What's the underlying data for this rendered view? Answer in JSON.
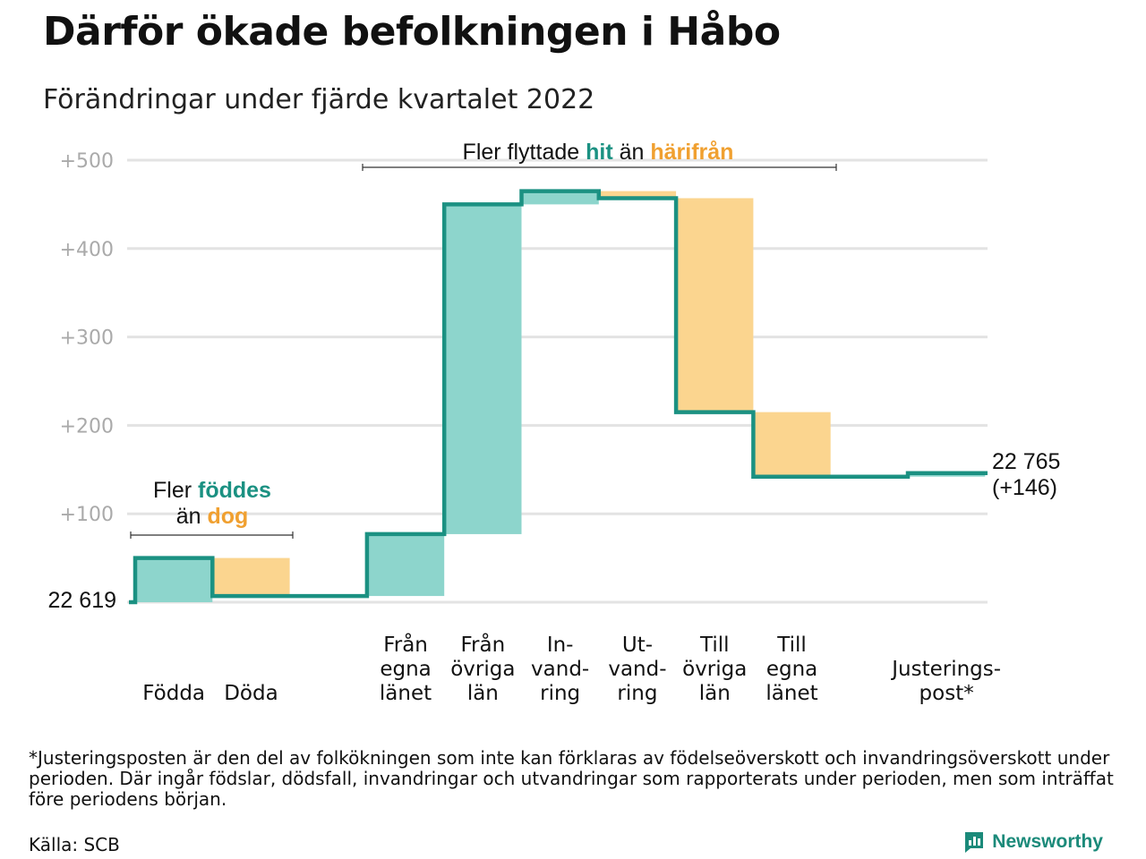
{
  "title": "Därför ökade befolkningen i Håbo",
  "subtitle": "Förändringar under fjärde kvartalet 2022",
  "colors": {
    "inflow": "#8dd5cc",
    "outflow": "#fbd58f",
    "line": "#1b9182",
    "hit": "#1b9182",
    "harifran": "#f0a030",
    "grid": "#e3e3e3",
    "tick": "#aaaaaa"
  },
  "chart_data": {
    "type": "waterfall",
    "ylim": [
      0,
      500
    ],
    "yticks": [
      "+100",
      "+200",
      "+300",
      "+400",
      "+500"
    ],
    "ytick_values": [
      100,
      200,
      300,
      400,
      500
    ],
    "start": {
      "label": "22 619",
      "value": 0
    },
    "end": {
      "label": "22 765",
      "sublabel": "(+146)",
      "value": 146
    },
    "steps": [
      {
        "label": [
          "Födda"
        ],
        "delta": 50,
        "type": "inflow"
      },
      {
        "label": [
          "Döda"
        ],
        "delta": -43,
        "type": "outflow"
      },
      {
        "label": [],
        "delta": 0,
        "type": "gap"
      },
      {
        "label": [
          "Från",
          "egna",
          "länet"
        ],
        "delta": 70,
        "type": "inflow"
      },
      {
        "label": [
          "Från",
          "övriga",
          "län"
        ],
        "delta": 373,
        "type": "inflow"
      },
      {
        "label": [
          "In-",
          "vand-",
          "ring"
        ],
        "delta": 15,
        "type": "inflow"
      },
      {
        "label": [
          "Ut-",
          "vand-",
          "ring"
        ],
        "delta": -8,
        "type": "outflow"
      },
      {
        "label": [
          "Till",
          "övriga",
          "län"
        ],
        "delta": -242,
        "type": "outflow"
      },
      {
        "label": [
          "Till",
          "egna",
          "länet"
        ],
        "delta": -73,
        "type": "outflow"
      },
      {
        "label": [],
        "delta": 0,
        "type": "gap"
      },
      {
        "label": [
          "Justerings-",
          "post*"
        ],
        "delta": 4,
        "type": "inflow"
      }
    ],
    "annotations": {
      "births": {
        "prefix": "Fler",
        "highlight1": "föddes",
        "line2_prefix": "än",
        "highlight2": "dog"
      },
      "migration": {
        "prefix": "Fler flyttade",
        "highlight1": "hit",
        "middle": "än",
        "highlight2": "härifrån"
      }
    }
  },
  "footnote": "*Justeringsposten är den del av folkökningen som inte kan förklaras av födelseöverskott och invandringsöverskott under perioden. Där ingår födslar, dödsfall, invandringar och utvandringar som rapporterats under perioden, men som inträffat före periodens början.",
  "source": "Källa: SCB",
  "brand": {
    "name": "Newsworthy",
    "icon": "newsworthy-logo-icon"
  }
}
